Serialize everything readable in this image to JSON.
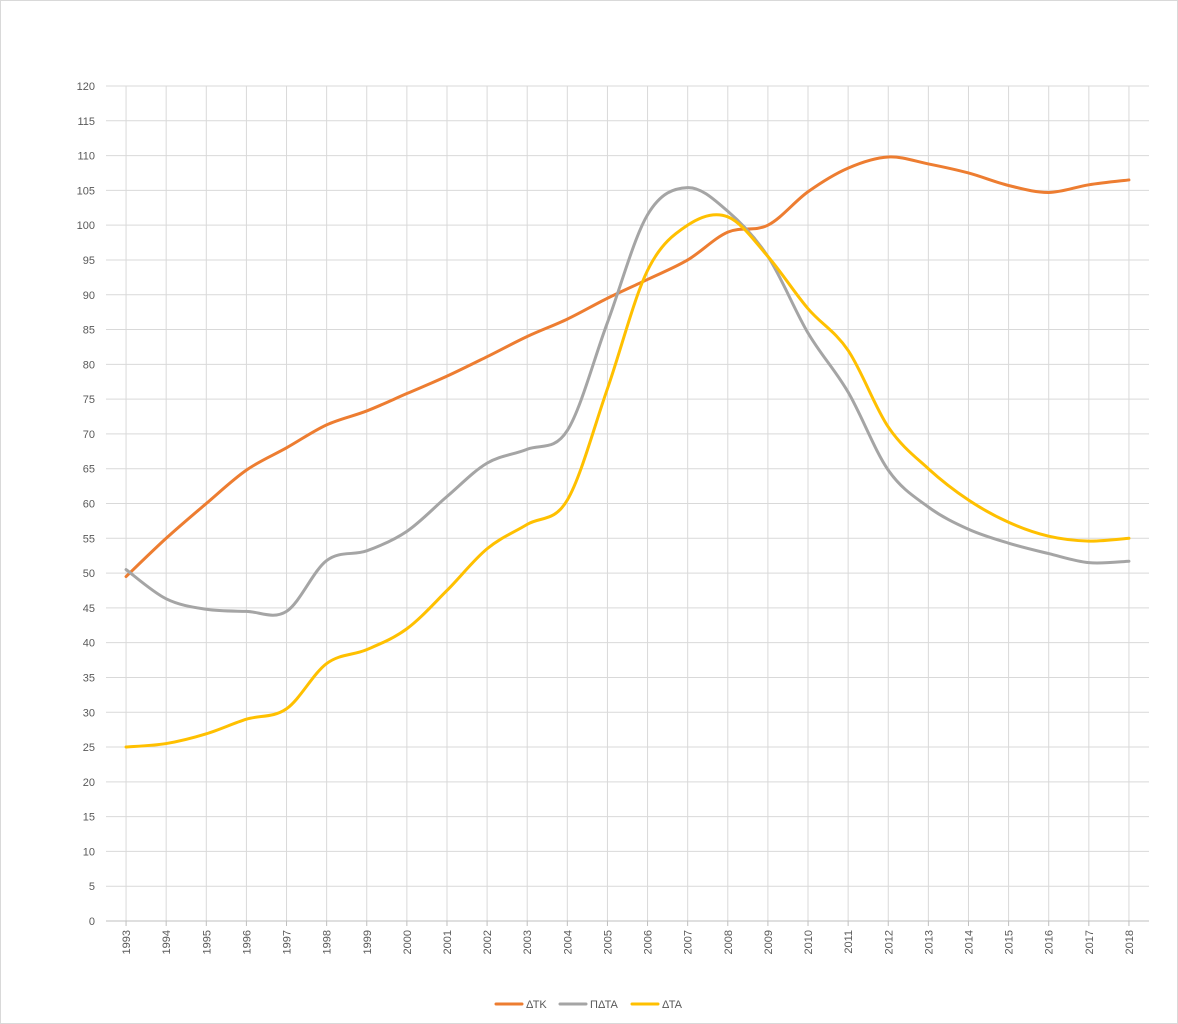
{
  "chart_data": {
    "type": "line",
    "title": "",
    "xlabel": "",
    "ylabel": "",
    "ylim": [
      0,
      120
    ],
    "ytick_step": 5,
    "grid": true,
    "legend_position": "bottom",
    "categories": [
      "1993",
      "1994",
      "1995",
      "1996",
      "1997",
      "1998",
      "1999",
      "2000",
      "2001",
      "2002",
      "2003",
      "2004",
      "2005",
      "2006",
      "2007",
      "2008",
      "2009",
      "2010",
      "2011",
      "2012",
      "2013",
      "2014",
      "2015",
      "2016",
      "2017",
      "2018"
    ],
    "series": [
      {
        "name": "ΔΤΚ",
        "color": "#ED7D31",
        "values": [
          49.5,
          55,
          60,
          64.8,
          68,
          71.3,
          73.3,
          75.8,
          78.3,
          81.1,
          84,
          86.5,
          89.5,
          92.2,
          95,
          99,
          100,
          104.8,
          108.2,
          109.8,
          108.8,
          107.5,
          105.7,
          104.7,
          105.8,
          106.5
        ]
      },
      {
        "name": "ΠΔΤΑ",
        "color": "#A5A5A5",
        "values": [
          50.5,
          46.3,
          44.8,
          44.5,
          44.5,
          51.8,
          53.2,
          56,
          61,
          65.8,
          67.8,
          70.5,
          86,
          101.5,
          105.4,
          102,
          95.5,
          84.5,
          76,
          64.8,
          59.5,
          56.3,
          54.3,
          52.8,
          51.5,
          51.7
        ]
      },
      {
        "name": "ΔΤΑ",
        "color": "#FFC000",
        "values": [
          25,
          25.5,
          26.9,
          29,
          30.5,
          37,
          39,
          42,
          47.5,
          53.5,
          57,
          60.5,
          76.5,
          93.5,
          100,
          101.2,
          95.5,
          88,
          82,
          71,
          65,
          60.5,
          57.3,
          55.3,
          54.6,
          55
        ]
      }
    ]
  }
}
